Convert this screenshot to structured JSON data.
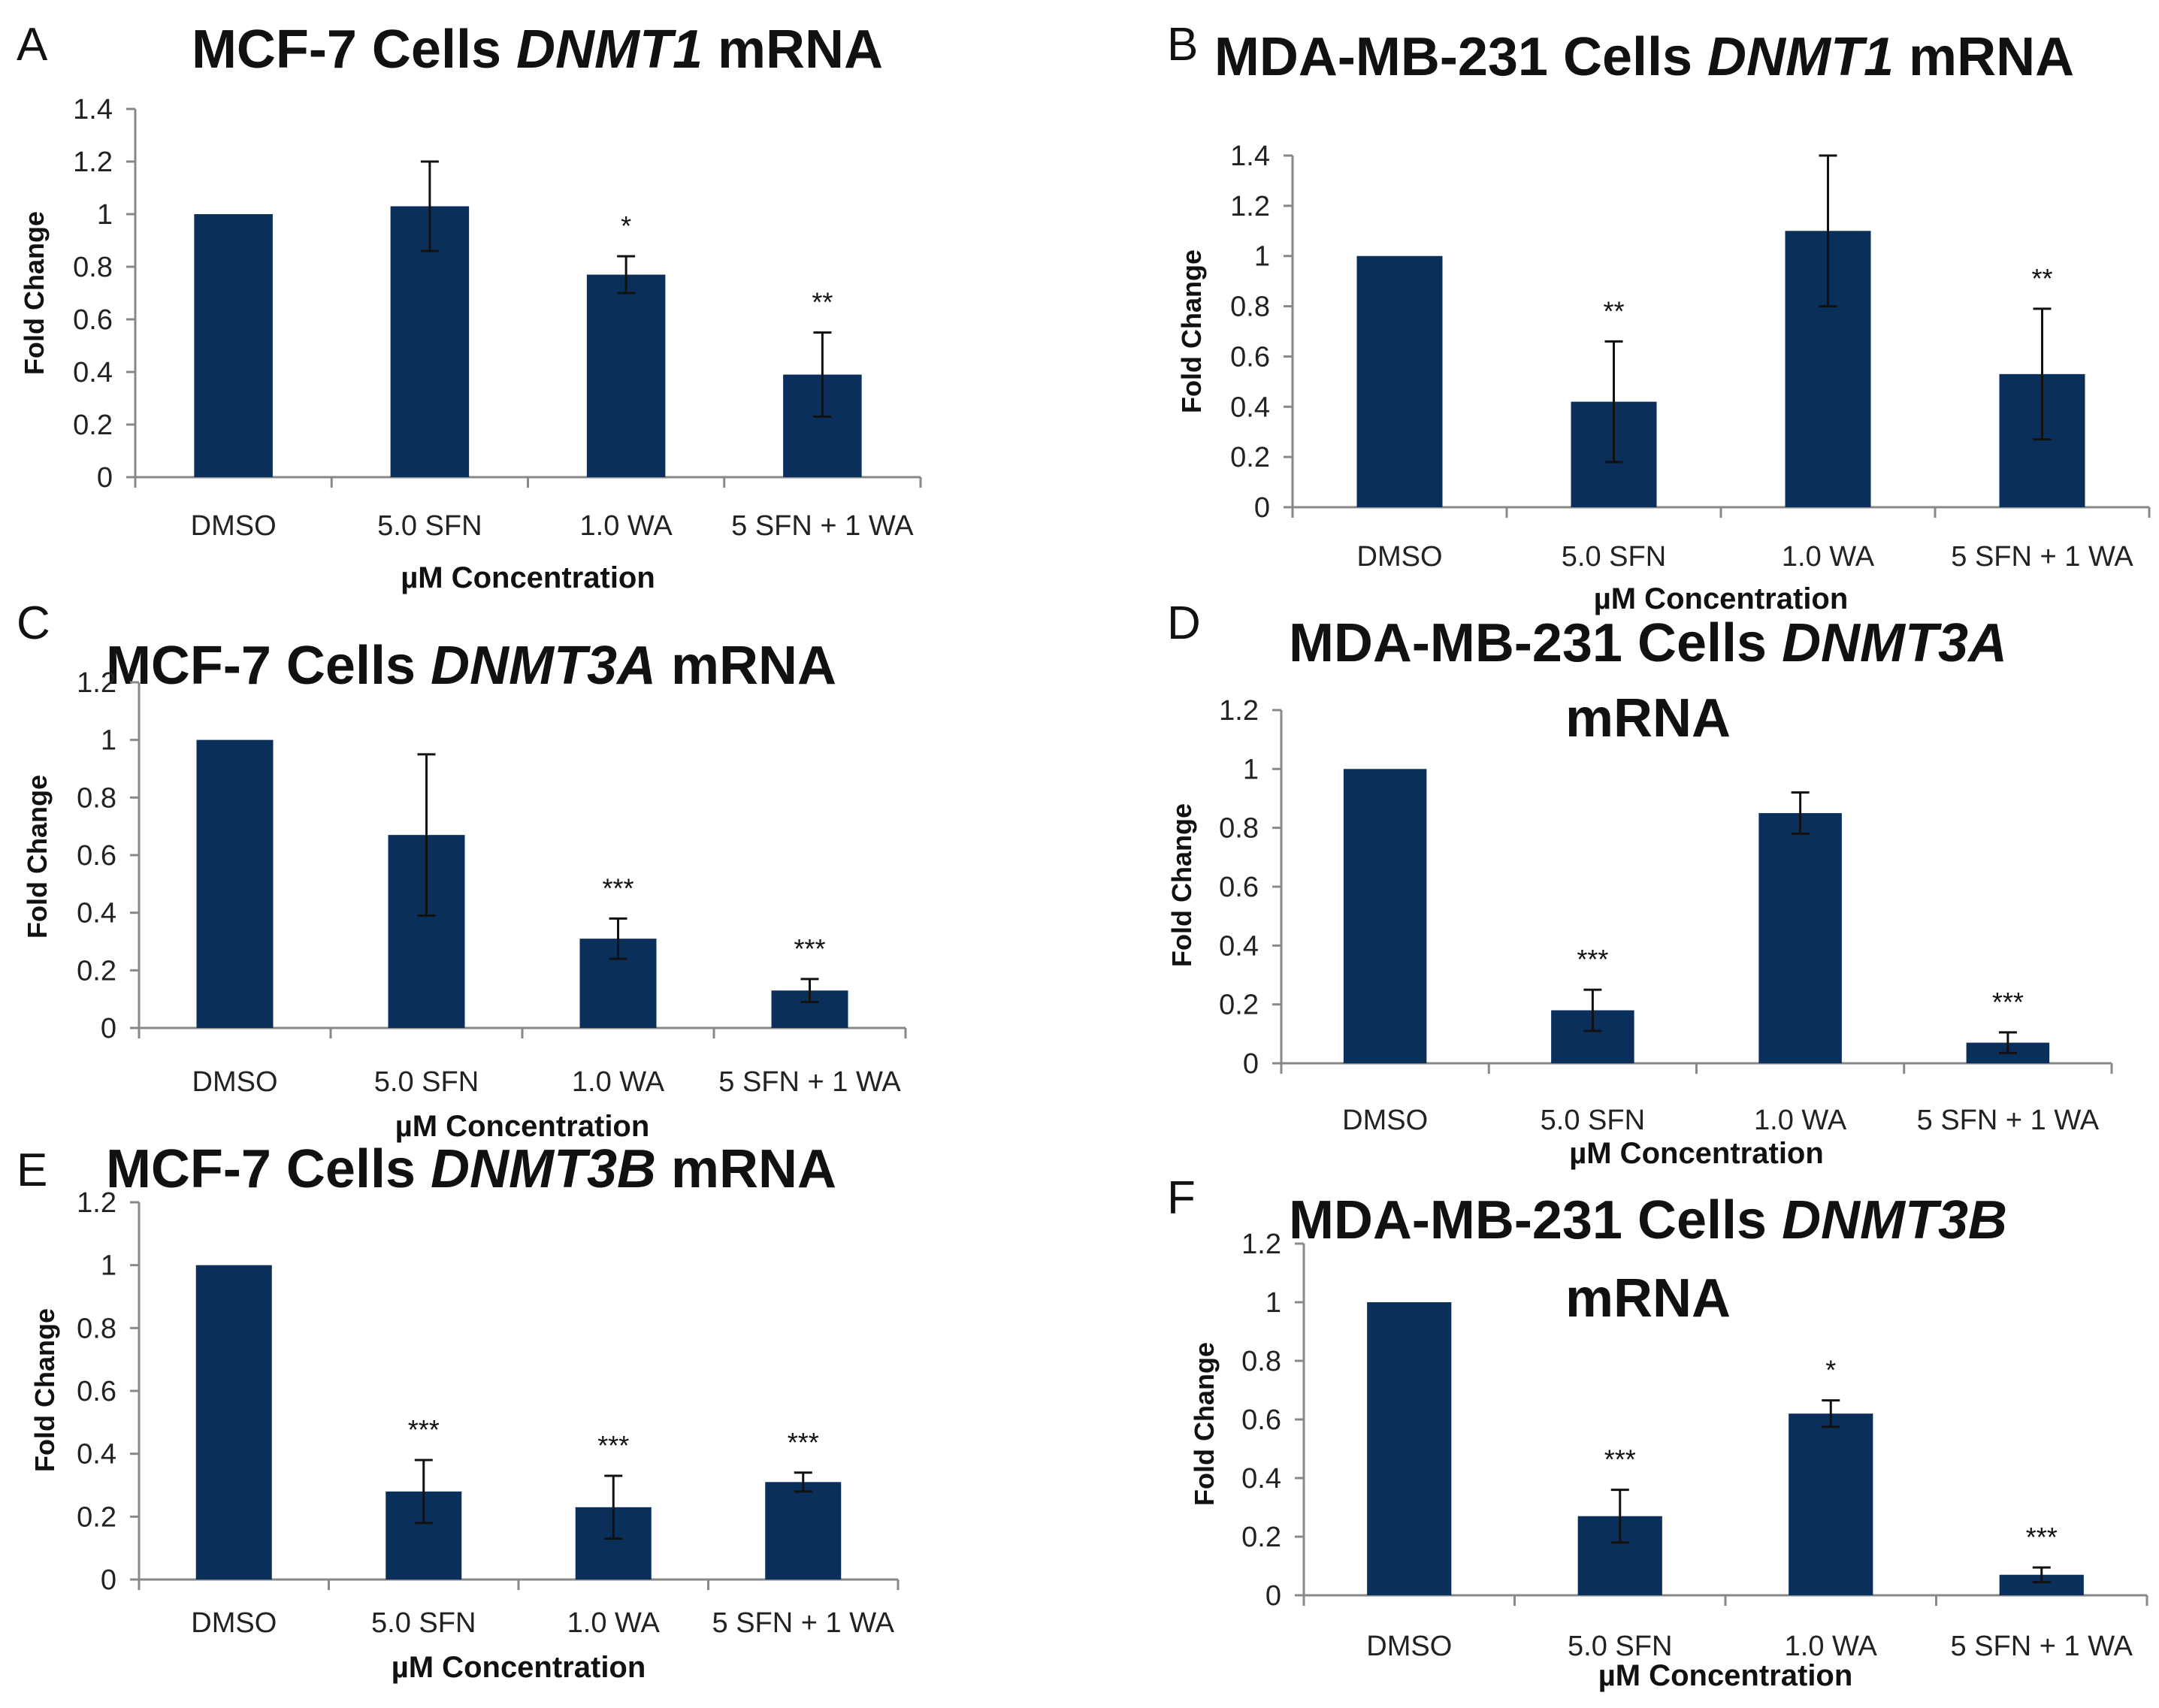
{
  "figure": {
    "bar_color": "#0b2f5b",
    "panels": [
      {
        "letter": "A",
        "title_plain": "MCF-7 Cells ",
        "title_gene": "DNMT1",
        "title_tail": " mRNA",
        "title_line2": "",
        "chart_data": {
          "type": "bar",
          "categories": [
            "DMSO",
            "5.0 SFN",
            "1.0 WA",
            "5 SFN + 1 WA"
          ],
          "values": [
            1.0,
            1.03,
            0.77,
            0.39
          ],
          "errors": [
            0,
            0.17,
            0.07,
            0.16
          ],
          "significance": [
            "",
            "",
            "*",
            "**"
          ],
          "title": "MCF-7 Cells DNMT1 mRNA",
          "xlabel": "µM Concentration",
          "ylabel": "Fold Change",
          "ylim": [
            0,
            1.4
          ],
          "yticks": [
            0,
            0.2,
            0.4,
            0.6,
            0.8,
            1.0,
            1.2,
            1.4
          ],
          "ytick_labels": [
            "0",
            "0.2",
            "0.4",
            "0.6",
            "0.8",
            "1",
            "1.2",
            "1.4"
          ]
        }
      },
      {
        "letter": "B",
        "title_plain": "MDA-MB-231 Cells ",
        "title_gene": "DNMT1",
        "title_tail": " mRNA",
        "title_line2": "",
        "chart_data": {
          "type": "bar",
          "categories": [
            "DMSO",
            "5.0 SFN",
            "1.0 WA",
            "5 SFN + 1 WA"
          ],
          "values": [
            1.0,
            0.42,
            1.1,
            0.53
          ],
          "errors": [
            0,
            0.24,
            0.3,
            0.26
          ],
          "significance": [
            "",
            "**",
            "",
            "**"
          ],
          "title": "MDA-MB-231 Cells DNMT1 mRNA",
          "xlabel": "µM Concentration",
          "ylabel": "Fold Change",
          "ylim": [
            0,
            1.4
          ],
          "yticks": [
            0,
            0.2,
            0.4,
            0.6,
            0.8,
            1.0,
            1.2,
            1.4
          ],
          "ytick_labels": [
            "0",
            "0.2",
            "0.4",
            "0.6",
            "0.8",
            "1",
            "1.2",
            "1.4"
          ]
        }
      },
      {
        "letter": "C",
        "title_plain": "MCF-7 Cells ",
        "title_gene": "DNMT3A",
        "title_tail": " mRNA",
        "title_line2": "",
        "chart_data": {
          "type": "bar",
          "categories": [
            "DMSO",
            "5.0 SFN",
            "1.0 WA",
            "5 SFN + 1 WA"
          ],
          "values": [
            1.0,
            0.67,
            0.31,
            0.13
          ],
          "errors": [
            0,
            0.28,
            0.07,
            0.04
          ],
          "significance": [
            "",
            "",
            "***",
            "***"
          ],
          "title": "MCF-7 Cells DNMT3A mRNA",
          "xlabel": "µM Concentration",
          "ylabel": "Fold Change",
          "ylim": [
            0,
            1.2
          ],
          "yticks": [
            0,
            0.2,
            0.4,
            0.6,
            0.8,
            1.0,
            1.2
          ],
          "ytick_labels": [
            "0",
            "0.2",
            "0.4",
            "0.6",
            "0.8",
            "1",
            "1.2"
          ]
        }
      },
      {
        "letter": "D",
        "title_plain": "MDA-MB-231 Cells ",
        "title_gene": "DNMT3A",
        "title_tail": "",
        "title_line2": "mRNA",
        "chart_data": {
          "type": "bar",
          "categories": [
            "DMSO",
            "5.0 SFN",
            "1.0 WA",
            "5 SFN + 1 WA"
          ],
          "values": [
            1.0,
            0.18,
            0.85,
            0.07
          ],
          "errors": [
            0,
            0.07,
            0.07,
            0.035
          ],
          "significance": [
            "",
            "***",
            "",
            "***"
          ],
          "title": "MDA-MB-231 Cells DNMT3A mRNA",
          "xlabel": "µM Concentration",
          "ylabel": "Fold Change",
          "ylim": [
            0,
            1.2
          ],
          "yticks": [
            0,
            0.2,
            0.4,
            0.6,
            0.8,
            1.0,
            1.2
          ],
          "ytick_labels": [
            "0",
            "0.2",
            "0.4",
            "0.6",
            "0.8",
            "1",
            "1.2"
          ]
        }
      },
      {
        "letter": "E",
        "title_plain": "MCF-7 Cells ",
        "title_gene": "DNMT3B",
        "title_tail": " mRNA",
        "title_line2": "",
        "chart_data": {
          "type": "bar",
          "categories": [
            "DMSO",
            "5.0 SFN",
            "1.0 WA",
            "5 SFN + 1 WA"
          ],
          "values": [
            1.0,
            0.28,
            0.23,
            0.31
          ],
          "errors": [
            0,
            0.1,
            0.1,
            0.03
          ],
          "significance": [
            "",
            "***",
            "***",
            "***"
          ],
          "title": "MCF-7 Cells DNMT3B mRNA",
          "xlabel": "µM Concentration",
          "ylabel": "Fold Change",
          "ylim": [
            0,
            1.2
          ],
          "yticks": [
            0,
            0.2,
            0.4,
            0.6,
            0.8,
            1.0,
            1.2
          ],
          "ytick_labels": [
            "0",
            "0.2",
            "0.4",
            "0.6",
            "0.8",
            "1",
            "1.2"
          ]
        }
      },
      {
        "letter": "F",
        "title_plain": "MDA-MB-231 Cells ",
        "title_gene": "DNMT3B",
        "title_tail": "",
        "title_line2": "mRNA",
        "chart_data": {
          "type": "bar",
          "categories": [
            "DMSO",
            "5.0 SFN",
            "1.0 WA",
            "5 SFN + 1 WA"
          ],
          "values": [
            1.0,
            0.27,
            0.62,
            0.07
          ],
          "errors": [
            0,
            0.09,
            0.045,
            0.025
          ],
          "significance": [
            "",
            "***",
            "*",
            "***"
          ],
          "title": "MDA-MB-231 Cells DNMT3B mRNA",
          "xlabel": "µM Concentration",
          "ylabel": "Fold Change",
          "ylim": [
            0,
            1.2
          ],
          "yticks": [
            0,
            0.2,
            0.4,
            0.6,
            0.8,
            1.0,
            1.2
          ],
          "ytick_labels": [
            "0",
            "0.2",
            "0.4",
            "0.6",
            "0.8",
            "1",
            "1.2"
          ]
        }
      }
    ]
  }
}
